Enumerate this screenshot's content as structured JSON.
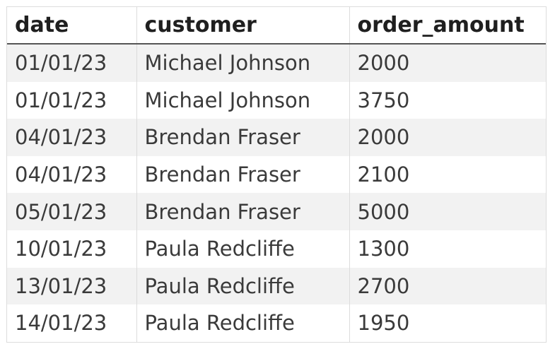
{
  "table": {
    "headers": [
      "date",
      "customer",
      "order_amount"
    ],
    "rows": [
      [
        "01/01/23",
        "Michael Johnson",
        "2000"
      ],
      [
        "01/01/23",
        "Michael Johnson",
        "3750"
      ],
      [
        "04/01/23",
        "Brendan Fraser",
        "2000"
      ],
      [
        "04/01/23",
        "Brendan Fraser",
        "2100"
      ],
      [
        "05/01/23",
        "Brendan Fraser",
        "5000"
      ],
      [
        "10/01/23",
        "Paula Redcliffe",
        "1300"
      ],
      [
        "13/01/23",
        "Paula Redcliffe",
        "2700"
      ],
      [
        "14/01/23",
        "Paula Redcliffe",
        "1950"
      ]
    ]
  },
  "colors": {
    "stripe": "#f2f2f2",
    "header_rule": "#555555",
    "grid": "#dcdcdc"
  }
}
